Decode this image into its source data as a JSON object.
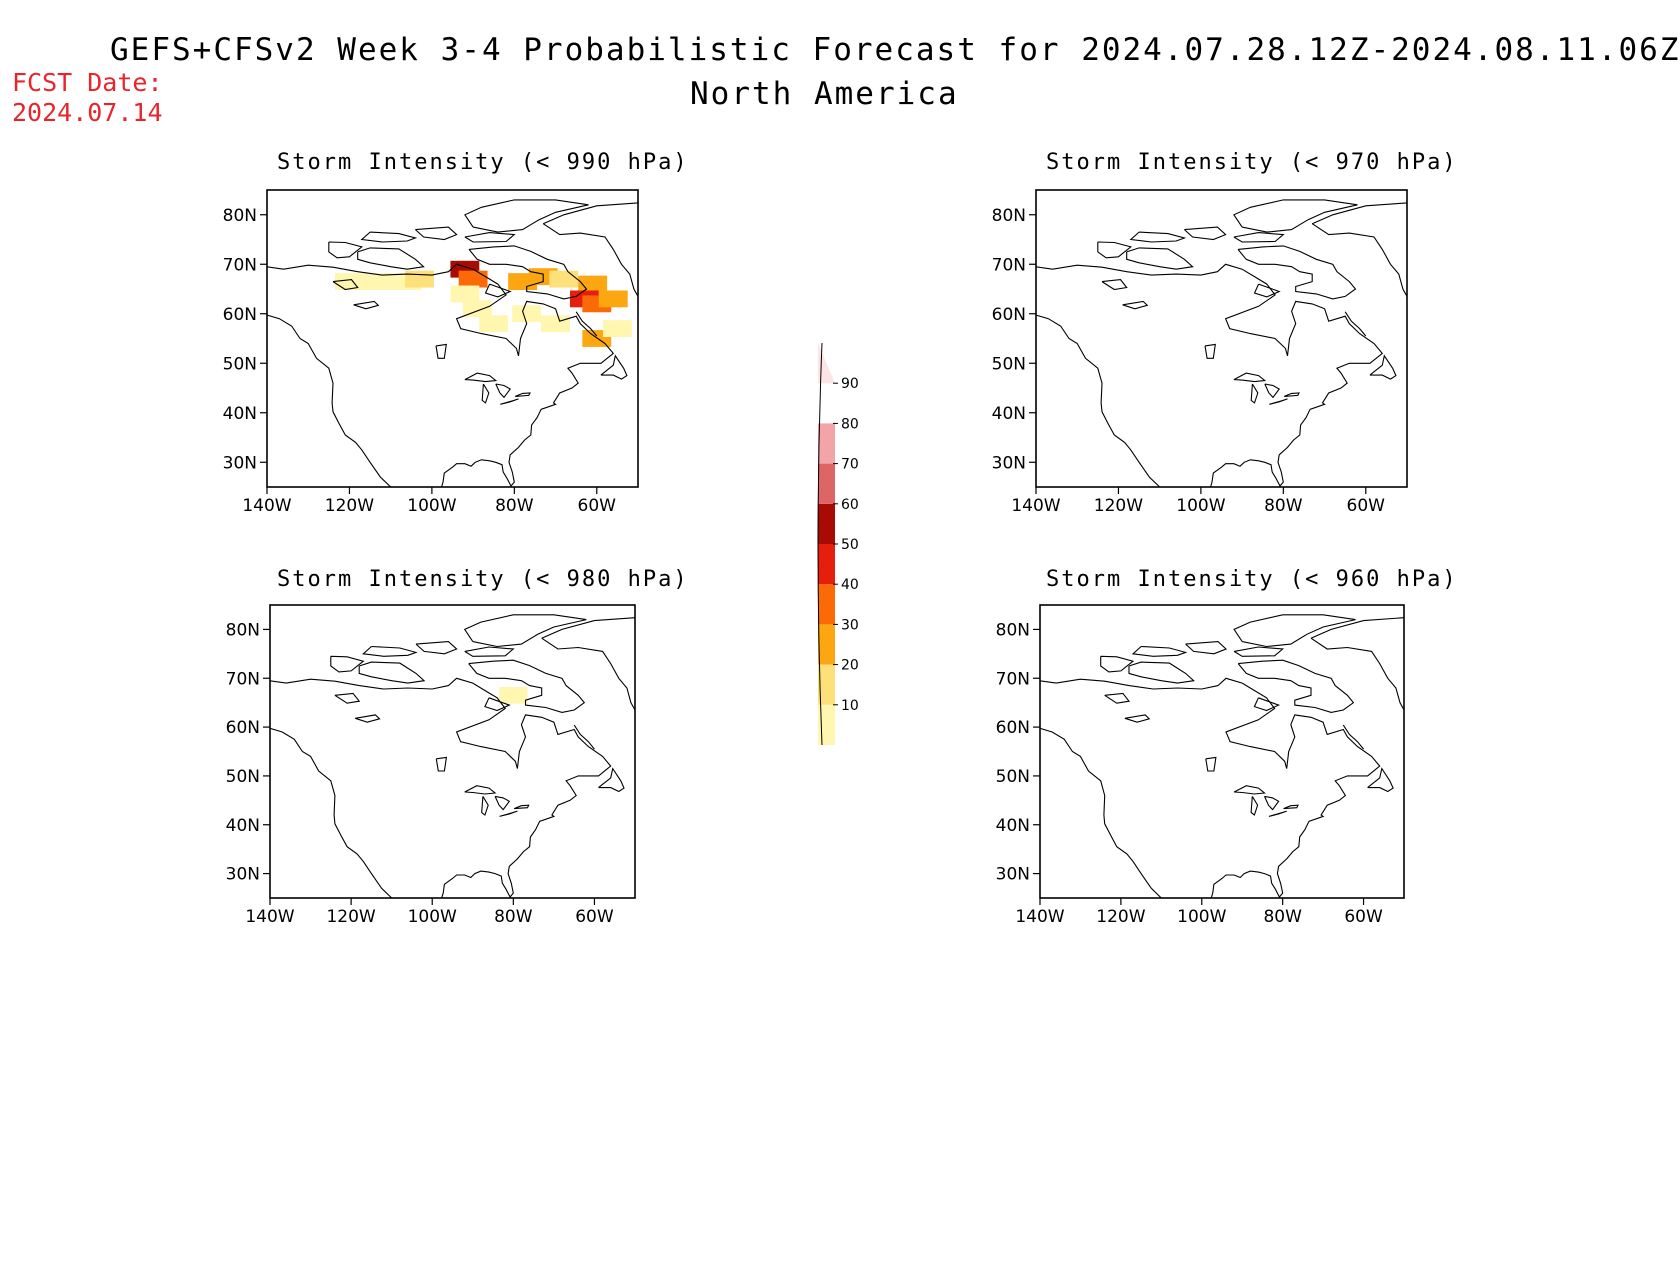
{
  "header": {
    "title_line1": "GEFS+CFSv2 Week 3-4 Probabilistic Forecast for 2024.07.28.12Z-2024.08.11.06Z",
    "title_line2": "North America",
    "fcst_label": "FCST Date:",
    "fcst_date": "2024.07.14"
  },
  "panels": [
    {
      "id": "p990",
      "title": "Storm Intensity (< 990 hPa)"
    },
    {
      "id": "p970",
      "title": "Storm Intensity (< 970 hPa)"
    },
    {
      "id": "p980",
      "title": "Storm Intensity (< 980 hPa)"
    },
    {
      "id": "p960",
      "title": "Storm Intensity (< 960 hPa)"
    }
  ],
  "axes": {
    "lat_ticks": [
      "80N",
      "70N",
      "60N",
      "50N",
      "40N",
      "30N"
    ],
    "lon_ticks": [
      "140W",
      "120W",
      "100W",
      "80W",
      "60W"
    ],
    "lat_values": [
      80,
      70,
      60,
      50,
      40,
      30
    ],
    "lon_values": [
      -140,
      -120,
      -100,
      -80,
      -60
    ],
    "lat_range": [
      25,
      85
    ],
    "lon_range": [
      -140,
      -50
    ]
  },
  "colorbar": {
    "levels": [
      "10",
      "20",
      "30",
      "40",
      "50",
      "60",
      "70",
      "80",
      "90"
    ],
    "colors": [
      "#fff6b0",
      "#fde07a",
      "#fca612",
      "#fb6a06",
      "#e61e0c",
      "#a80b04",
      "#de6566",
      "#f2a4a6",
      "#fde4e6"
    ]
  },
  "chart_data": {
    "type": "heatmap",
    "variable": "probability (%)",
    "panels": [
      {
        "title": "Storm Intensity (< 990 hPa)",
        "cells": [
          {
            "lon": -120,
            "lat": 66.5,
            "value": 10
          },
          {
            "lon": -113,
            "lat": 66.5,
            "value": 10
          },
          {
            "lon": -106,
            "lat": 66.5,
            "value": 10
          },
          {
            "lon": -103,
            "lat": 67,
            "value": 20
          },
          {
            "lon": -92,
            "lat": 69,
            "value": 60
          },
          {
            "lon": -90,
            "lat": 67,
            "value": 40
          },
          {
            "lon": -92,
            "lat": 64,
            "value": 10
          },
          {
            "lon": -89,
            "lat": 61,
            "value": 10
          },
          {
            "lon": -85,
            "lat": 58,
            "value": 10
          },
          {
            "lon": -78,
            "lat": 66.5,
            "value": 30
          },
          {
            "lon": -73,
            "lat": 67.5,
            "value": 30
          },
          {
            "lon": -68,
            "lat": 67,
            "value": 20
          },
          {
            "lon": -61,
            "lat": 66,
            "value": 30
          },
          {
            "lon": -63,
            "lat": 63,
            "value": 50
          },
          {
            "lon": -60,
            "lat": 62,
            "value": 40
          },
          {
            "lon": -56,
            "lat": 63,
            "value": 30
          },
          {
            "lon": -60,
            "lat": 55,
            "value": 30
          },
          {
            "lon": -77,
            "lat": 60,
            "value": 10
          },
          {
            "lon": -70,
            "lat": 58,
            "value": 10
          },
          {
            "lon": -55,
            "lat": 57,
            "value": 10
          }
        ]
      },
      {
        "title": "Storm Intensity (< 970 hPa)",
        "cells": []
      },
      {
        "title": "Storm Intensity (< 980 hPa)",
        "cells": [
          {
            "lon": -80,
            "lat": 66.5,
            "value": 10
          }
        ]
      },
      {
        "title": "Storm Intensity (< 960 hPa)",
        "cells": []
      }
    ]
  }
}
